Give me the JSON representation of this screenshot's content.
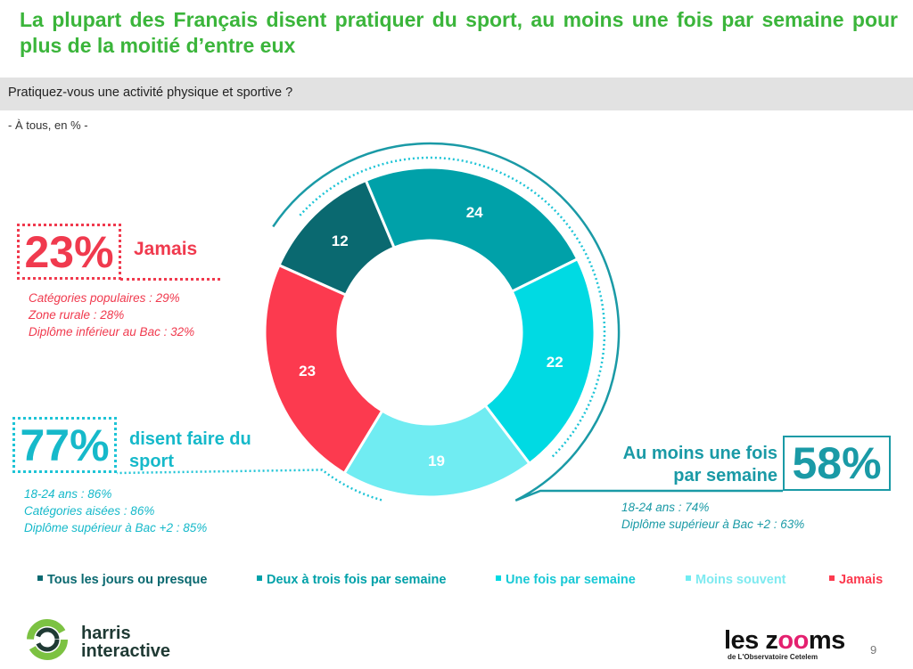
{
  "title": "La plupart des Français disent pratiquer du sport, au moins une fois par semaine pour plus de la moitié d’entre eux",
  "question": "Pratiquez-vous une activité physique et sportive ?",
  "base": "- À tous, en % -",
  "callouts": {
    "jamais": {
      "pct": "23%",
      "label": "Jamais",
      "details": [
        "Catégories populaires : 29%",
        "Zone rurale : 28%",
        "Diplôme inférieur au Bac : 32%"
      ],
      "color": "#f03a4e"
    },
    "sport": {
      "pct": "77%",
      "label": "disent faire du sport",
      "details": [
        "18-24 ans : 86%",
        "Catégories aisées : 86%",
        "Diplôme supérieur à Bac +2 : 85%"
      ],
      "color": "#16b9ca"
    },
    "weekly": {
      "pct": "58%",
      "label": "Au moins une fois par semaine",
      "details": [
        "18-24 ans : 74%",
        "Diplôme supérieur à Bac +2 : 63%"
      ],
      "color": "#1a9aa6"
    }
  },
  "chart_data": {
    "type": "pie",
    "donut": true,
    "title": "Pratiquez-vous une activité physique et sportive ?",
    "categories": [
      "Tous les jours ou presque",
      "Deux à trois fois par semaine",
      "Une fois par semaine",
      "Moins souvent",
      "Jamais"
    ],
    "values": [
      12,
      24,
      22,
      19,
      23
    ],
    "colors": [
      "#0a6970",
      "#00a1a9",
      "#00dae3",
      "#70ecf2",
      "#fc3a4f"
    ],
    "unit": "%"
  },
  "footer": {
    "harris": [
      "harris",
      "interactive"
    ],
    "zooms": [
      "les z",
      "oo",
      "ms"
    ],
    "zooms_sub": "de L'Observatoire Cetelem",
    "page": "9"
  }
}
